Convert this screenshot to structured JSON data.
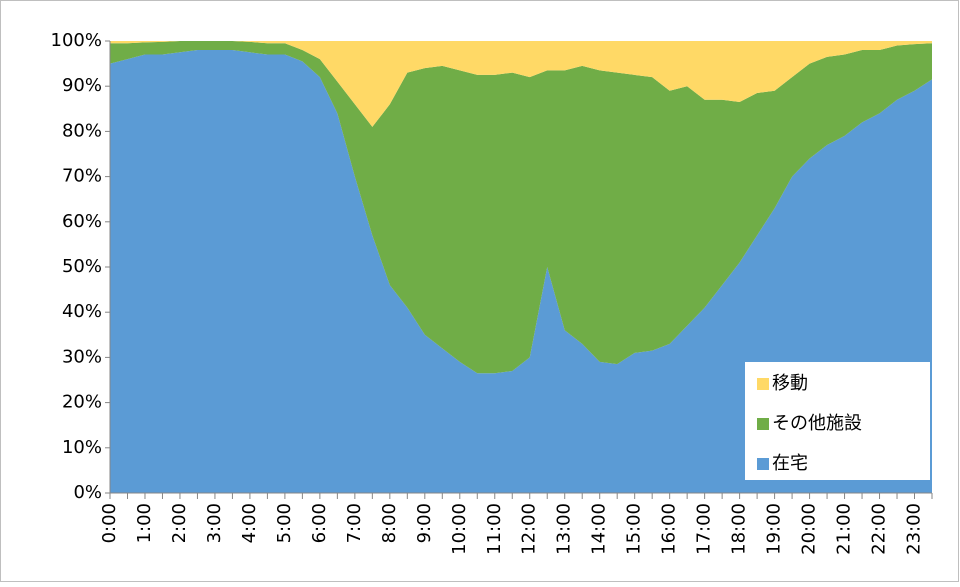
{
  "chart_data": {
    "type": "stacked_area",
    "categories": [
      "0:00",
      null,
      "1:00",
      null,
      "2:00",
      null,
      "3:00",
      null,
      "4:00",
      null,
      "5:00",
      null,
      "6:00",
      null,
      "7:00",
      null,
      "8:00",
      null,
      "9:00",
      null,
      "10:00",
      null,
      "11:00",
      null,
      "12:00",
      null,
      "13:00",
      null,
      "14:00",
      null,
      "15:00",
      null,
      "16:00",
      null,
      "17:00",
      null,
      "18:00",
      null,
      "19:00",
      null,
      "20:00",
      null,
      "21:00",
      null,
      "22:00",
      null,
      "23:00",
      null
    ],
    "series": [
      {
        "name": "在宅",
        "color": "#5b9bd5",
        "values": [
          95,
          96,
          97,
          97,
          97.5,
          98,
          98,
          98,
          97.5,
          97,
          97,
          95.5,
          92,
          84,
          70,
          57,
          46,
          41,
          35,
          32,
          29,
          26.5,
          26.5,
          27,
          30,
          50,
          36,
          33,
          29,
          28.5,
          31,
          31.5,
          33,
          37,
          41,
          46,
          51,
          57,
          63,
          70,
          74,
          77,
          79,
          82,
          84,
          87,
          89,
          91.5
        ]
      },
      {
        "name": "その他施設",
        "color": "#70ad47",
        "values": [
          4.5,
          3.5,
          2.7,
          2.8,
          2.5,
          2,
          2,
          2,
          2.3,
          2.5,
          2.5,
          2.5,
          4,
          7,
          16,
          24,
          40,
          52,
          59,
          62.5,
          64.5,
          66,
          66,
          66,
          62,
          43.5,
          57.5,
          61.5,
          64.5,
          64.5,
          61.5,
          60.5,
          56,
          53,
          46,
          41,
          35.5,
          31.5,
          26,
          22,
          21,
          19.5,
          18,
          16,
          14,
          12,
          10.3,
          8
        ]
      },
      {
        "name": "移動",
        "color": "#ffd966",
        "values": [
          0.5,
          0.5,
          0.3,
          0.2,
          0,
          0,
          0,
          0,
          0.2,
          0.5,
          0.5,
          2,
          4,
          9,
          14,
          19,
          14,
          7,
          6,
          5.5,
          6.5,
          7.5,
          7.5,
          7,
          8,
          6.5,
          6.5,
          5.5,
          6.5,
          7,
          7.5,
          8,
          11,
          10,
          13,
          13,
          13.5,
          11.5,
          11,
          8,
          5,
          3.5,
          3,
          2,
          2,
          1,
          0.7,
          0.5
        ]
      }
    ],
    "ylim": [
      0,
      100
    ],
    "yticks": [
      {
        "value": 0,
        "label": "0%"
      },
      {
        "value": 10,
        "label": "10%"
      },
      {
        "value": 20,
        "label": "20%"
      },
      {
        "value": 30,
        "label": "30%"
      },
      {
        "value": 40,
        "label": "40%"
      },
      {
        "value": 50,
        "label": "50%"
      },
      {
        "value": 60,
        "label": "60%"
      },
      {
        "value": 70,
        "label": "70%"
      },
      {
        "value": 80,
        "label": "80%"
      },
      {
        "value": 90,
        "label": "90%"
      },
      {
        "value": 100,
        "label": "100%"
      }
    ],
    "legend": "lower right"
  }
}
